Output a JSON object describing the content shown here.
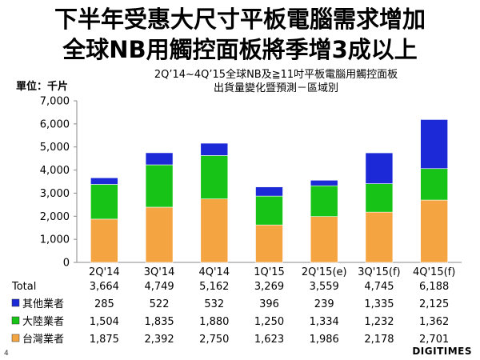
{
  "slide": {
    "title_line1": "下半年受惠大尺寸平板電腦需求增加",
    "title_line2": "全球NB用觸控面板將季增3成以上",
    "page_number": "4",
    "logo_text": "DIGITIMES"
  },
  "chart_data": {
    "type": "bar",
    "stacked": true,
    "title_line1": "2Q’14~4Q’15全球NB及≧11吋平板電腦用觸控面板",
    "title_line2": "出貨量變化暨預測－區域別",
    "unit_label": "單位：千片",
    "categories": [
      "2Q'14",
      "3Q'14",
      "4Q'14",
      "1Q'15",
      "2Q'15(e)",
      "3Q'15(f)",
      "4Q'15(f)"
    ],
    "ylim": [
      0,
      7000
    ],
    "yticks": [
      0,
      1000,
      2000,
      3000,
      4000,
      5000,
      6000,
      7000
    ],
    "ytick_labels": [
      "0",
      "1,000",
      "2,000",
      "3,000",
      "4,000",
      "5,000",
      "6,000",
      "7,000"
    ],
    "grid": false,
    "total_label": "Total",
    "totals": [
      "3,664",
      "4,749",
      "5,162",
      "3,269",
      "3,559",
      "4,745",
      "6,188"
    ],
    "series": [
      {
        "name": "台灣業者",
        "color": "#F5A442",
        "values": [
          1875,
          2392,
          2750,
          1623,
          1986,
          2178,
          2701
        ],
        "labels": [
          "1,875",
          "2,392",
          "2,750",
          "1,623",
          "1,986",
          "2,178",
          "2,701"
        ]
      },
      {
        "name": "大陸業者",
        "color": "#17C317",
        "values": [
          1504,
          1835,
          1880,
          1250,
          1334,
          1232,
          1362
        ],
        "labels": [
          "1,504",
          "1,835",
          "1,880",
          "1,250",
          "1,334",
          "1,232",
          "1,362"
        ]
      },
      {
        "name": "其他業者",
        "color": "#1B29D6",
        "values": [
          285,
          522,
          532,
          396,
          239,
          1335,
          2125
        ],
        "labels": [
          "285",
          "522",
          "532",
          "396",
          "239",
          "1,335",
          "2,125"
        ]
      }
    ]
  }
}
